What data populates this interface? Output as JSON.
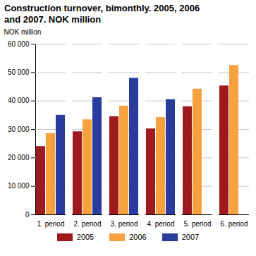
{
  "chart_data": {
    "type": "bar",
    "title": "Construction turnover, bimonthly. 2005, 2006 and 2007. NOK million",
    "y_label": "NOK million",
    "categories": [
      "1. period",
      "2. period",
      "3. period",
      "4. period",
      "5. period",
      "6. period"
    ],
    "series": [
      {
        "name": "2005",
        "color": "#9e1a1f",
        "values": [
          24000,
          29200,
          34500,
          30200,
          38000,
          45300
        ]
      },
      {
        "name": "2006",
        "color": "#f7a23e",
        "values": [
          28600,
          33400,
          38200,
          34200,
          44200,
          52500
        ]
      },
      {
        "name": "2007",
        "color": "#293c9e",
        "values": [
          35000,
          41200,
          48000,
          40500,
          null,
          null
        ]
      }
    ],
    "ylim": [
      0,
      60000
    ],
    "yticks": [
      0,
      {
        "value": 10000,
        "label": "10 000"
      },
      {
        "value": 20000,
        "label": "20 000"
      },
      {
        "value": 30000,
        "label": "30 000"
      },
      {
        "value": 40000,
        "label": "40 000"
      },
      {
        "value": 50000,
        "label": "50 000"
      },
      {
        "value": 60000,
        "label": "60 000"
      }
    ],
    "grid": true,
    "legend": "bottom"
  }
}
